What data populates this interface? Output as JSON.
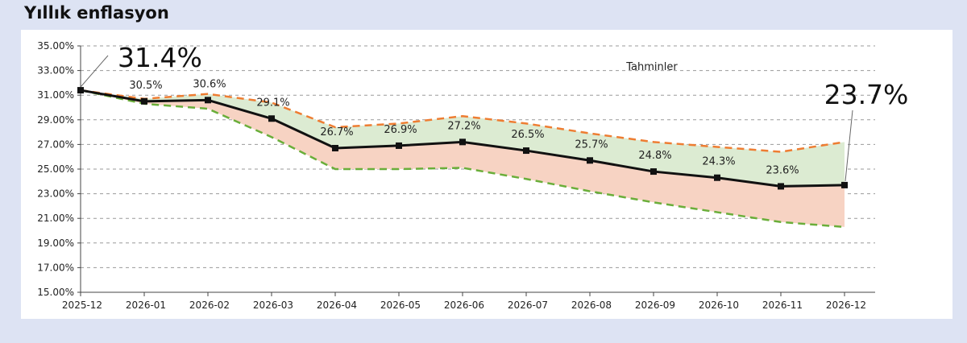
{
  "title": "Yıllık enflasyon",
  "chart_data": {
    "type": "line",
    "categories": [
      "2025-12",
      "2026-01",
      "2026-02",
      "2026-03",
      "2026-04",
      "2026-05",
      "2026-06",
      "2026-07",
      "2026-08",
      "2026-09",
      "2026-10",
      "2026-11",
      "2026-12"
    ],
    "ylim": [
      15,
      35
    ],
    "yticks": [
      15,
      17,
      19,
      21,
      23,
      25,
      27,
      29,
      31,
      33,
      35
    ],
    "ytick_labels": [
      "15.00%",
      "17.00%",
      "19.00%",
      "21.00%",
      "23.00%",
      "25.00%",
      "27.00%",
      "29.00%",
      "31.00%",
      "33.00%",
      "35.00%"
    ],
    "grid": true,
    "series": [
      {
        "values": [
          31.4,
          30.5,
          30.6,
          29.1,
          26.7,
          26.9,
          27.2,
          26.5,
          25.7,
          24.8,
          24.3,
          23.6,
          23.7
        ],
        "color": "#111111",
        "style": "solid",
        "markers": true
      },
      {
        "values": [
          31.4,
          30.7,
          31.1,
          30.4,
          28.4,
          28.7,
          29.3,
          28.7,
          27.9,
          27.2,
          26.8,
          26.4,
          27.2
        ],
        "color": "#ee7d32",
        "style": "dashed"
      },
      {
        "values": [
          31.4,
          30.3,
          29.9,
          27.6,
          25.0,
          25.0,
          25.1,
          24.2,
          23.2,
          22.3,
          21.5,
          20.7,
          20.3
        ],
        "color": "#6aae3a",
        "style": "dashed"
      }
    ],
    "upper_band_color": "#dcebd2",
    "lower_band_color": "#f7d3c3",
    "data_labels": [
      "",
      "30.5%",
      "30.6%",
      "29.1%",
      "26.7%",
      "26.9%",
      "27.2%",
      "26.5%",
      "25.7%",
      "24.8%",
      "24.3%",
      "23.6%",
      ""
    ],
    "annotations": {
      "start": "31.4%",
      "end": "23.7%",
      "forecast": "Tahminler"
    }
  }
}
